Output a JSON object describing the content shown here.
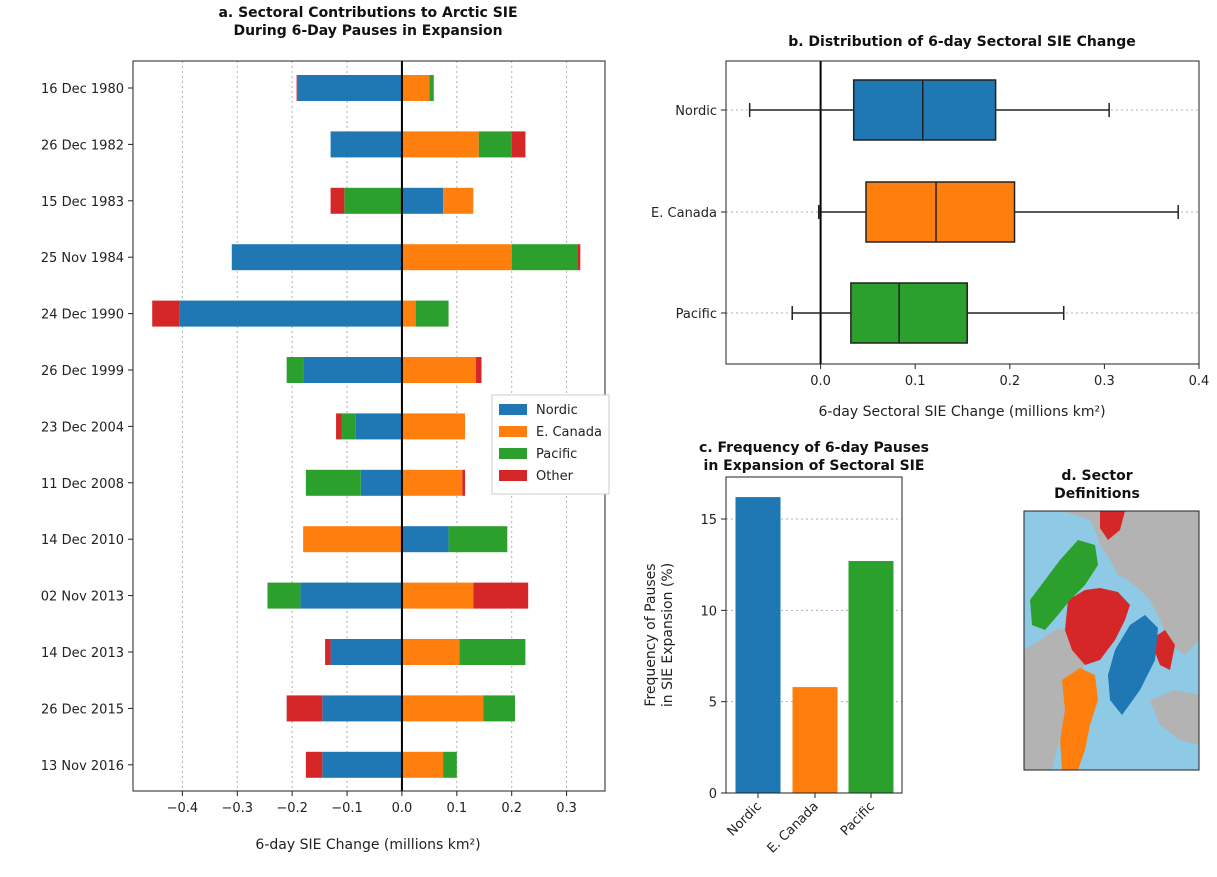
{
  "colors": {
    "nordic": "#1f77b4",
    "e_canada": "#ff7f0e",
    "pacific": "#2ca02c",
    "other": "#d62728",
    "d_ocean": "#8ecae6",
    "d_land": "#b3b3b3"
  },
  "chart_data": [
    {
      "id": "a",
      "type": "bar",
      "orientation": "horizontal-stacked-diverging",
      "title": "a. Sectoral Contributions to Arctic SIE During 6-Day Pauses in Expansion",
      "title_lines": [
        "a. Sectoral Contributions to Arctic SIE",
        "During 6-Day Pauses in Expansion"
      ],
      "xlabel": "6-day SIE Change (millions km²)",
      "xlim": [
        -0.49,
        0.37
      ],
      "xticks": [
        -0.4,
        -0.3,
        -0.2,
        -0.1,
        0.0,
        0.1,
        0.2,
        0.3
      ],
      "xtick_labels": [
        "−0.4",
        "−0.3",
        "−0.2",
        "−0.1",
        "0.0",
        "0.1",
        "0.2",
        "0.3"
      ],
      "grid": "x",
      "legend_position": "center-right",
      "categories": [
        "16 Dec 1980",
        "26 Dec 1982",
        "15 Dec 1983",
        "25 Nov 1984",
        "24 Dec 1990",
        "26 Dec 1999",
        "23 Dec 2004",
        "11 Dec 2008",
        "14 Dec 2010",
        "02 Nov 2013",
        "14 Dec 2013",
        "26 Dec 2015",
        "13 Nov 2016"
      ],
      "series": [
        {
          "name": "Nordic",
          "key": "nordic",
          "values": [
            -0.19,
            -0.13,
            0.075,
            -0.31,
            -0.405,
            -0.18,
            -0.085,
            -0.075,
            0.085,
            -0.185,
            -0.13,
            -0.145,
            -0.145
          ]
        },
        {
          "name": "E. Canada",
          "key": "e_canada",
          "values": [
            0.05,
            0.14,
            0.055,
            0.2,
            0.025,
            0.135,
            0.115,
            0.11,
            -0.18,
            0.13,
            0.105,
            0.148,
            0.075
          ]
        },
        {
          "name": "Pacific",
          "key": "pacific",
          "values": [
            0.008,
            0.06,
            -0.105,
            0.12,
            0.06,
            -0.03,
            -0.025,
            -0.1,
            0.107,
            -0.06,
            0.12,
            0.058,
            0.025
          ]
        },
        {
          "name": "Other",
          "key": "other",
          "values": [
            -0.002,
            0.025,
            -0.025,
            0.005,
            -0.05,
            0.01,
            -0.01,
            0.005,
            0.0,
            0.1,
            -0.01,
            -0.065,
            -0.03
          ]
        }
      ]
    },
    {
      "id": "b",
      "type": "box",
      "title": "b. Distribution of 6-day Sectoral SIE Change",
      "xlabel": "6-day Sectoral SIE Change (millions km²)",
      "xlim": [
        -0.1,
        0.4
      ],
      "xticks": [
        0.0,
        0.1,
        0.2,
        0.3,
        0.4
      ],
      "xtick_labels": [
        "0.0",
        "0.1",
        "0.2",
        "0.3",
        "0.4"
      ],
      "grid": "y",
      "categories": [
        "Nordic",
        "E. Canada",
        "Pacific"
      ],
      "boxes": [
        {
          "name": "Nordic",
          "key": "nordic",
          "whisker_low": -0.075,
          "q1": 0.035,
          "median": 0.108,
          "q3": 0.185,
          "whisker_high": 0.305
        },
        {
          "name": "E. Canada",
          "key": "e_canada",
          "whisker_low": -0.002,
          "q1": 0.048,
          "median": 0.122,
          "q3": 0.205,
          "whisker_high": 0.378
        },
        {
          "name": "Pacific",
          "key": "pacific",
          "whisker_low": -0.03,
          "q1": 0.032,
          "median": 0.083,
          "q3": 0.155,
          "whisker_high": 0.257
        }
      ]
    },
    {
      "id": "c",
      "type": "bar",
      "title": "c. Frequency of 6-day Pauses in Expansion of Sectoral SIE",
      "title_lines": [
        "c. Frequency of 6-day Pauses",
        "in Expansion of Sectoral SIE"
      ],
      "ylabel": "Frequency of Pauses in SIE Expansion (%)",
      "ylabel_lines": [
        "Frequency of Pauses",
        "in SIE Expansion (%)"
      ],
      "ylim": [
        0,
        17.3
      ],
      "yticks": [
        0,
        5,
        10,
        15
      ],
      "ytick_labels": [
        "0",
        "5",
        "10",
        "15"
      ],
      "grid": "y",
      "categories": [
        "Nordic",
        "E. Canada",
        "Pacific"
      ],
      "values": [
        16.2,
        5.8,
        12.7
      ],
      "keys": [
        "nordic",
        "e_canada",
        "pacific"
      ]
    }
  ],
  "panel_d": {
    "title_lines": [
      "d. Sector",
      "Definitions"
    ]
  }
}
